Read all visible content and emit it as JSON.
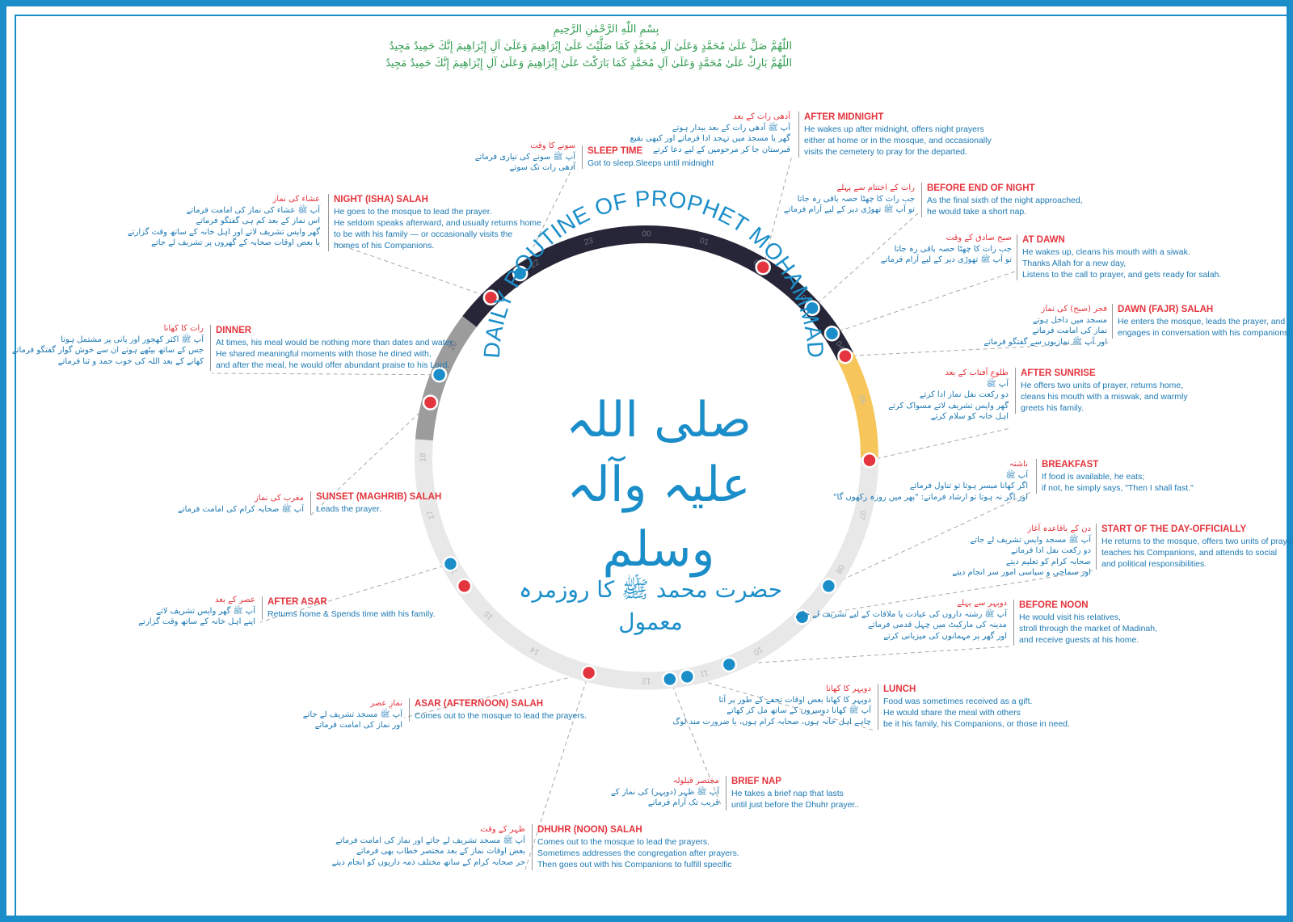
{
  "header": {
    "lines": [
      "بِسْمِ اللّٰهِ الرَّحْمٰنِ الرَّحِيمِ",
      "اللّٰهُمَّ صَلِّ عَلَىٰ مُحَمَّدٍ وَعَلَىٰ آلِ مُحَمَّدٍ كَمَا صَلَّيْتَ عَلَىٰ إِبْرَاهِيمَ وَعَلَىٰ آلِ إِبْرَاهِيمَ إِنَّكَ حَمِيدٌ مَجِيدٌ",
      "اللّٰهُمَّ بَارِكْ عَلَىٰ مُحَمَّدٍ وَعَلَىٰ آلِ مُحَمَّدٍ كَمَا بَارَكْتَ عَلَىٰ إِبْرَاهِيمَ وَعَلَىٰ آلِ إِبْرَاهِيمَ إِنَّكَ حَمِيدٌ مَجِيدٌ"
    ]
  },
  "diagram": {
    "arc_title": "DAILY ROUTINE OF PROPHET MOHAMMAD",
    "center_calligraphy": "صلی اللہ علیہ وآلہ وسلم",
    "subtitle_urdu": "حضرت محمد ﷺ کا روزمرہ معمول",
    "colors": {
      "accent": "#1b8ec9",
      "title_red": "#e4343d",
      "text_blue": "#1c79b3",
      "night": "#272638",
      "dawn": "#f6c65b",
      "evening": "#9c9c9c",
      "day": "#e8e8e8",
      "green": "#2e9a4e"
    },
    "segments": [
      {
        "name": "night",
        "from": 20.5,
        "to": 4.2,
        "color": "#272638"
      },
      {
        "name": "dawn",
        "from": 4.2,
        "to": 6.0,
        "color": "#f6c65b"
      },
      {
        "name": "day",
        "from": 6.0,
        "to": 18.3,
        "color": "#e8e8e8"
      },
      {
        "name": "evening",
        "from": 18.3,
        "to": 20.5,
        "color": "#9c9c9c"
      }
    ],
    "hour_labels": [
      "00",
      "01",
      "02",
      "03",
      "04",
      "05",
      "06",
      "07",
      "08",
      "09",
      "10",
      "11",
      "12",
      "13",
      "14",
      "15",
      "16",
      "17",
      "18",
      "19",
      "20",
      "21",
      "22",
      "23"
    ],
    "markers": [
      {
        "hour": 2.1,
        "color": "#e4343d"
      },
      {
        "hour": 3.2,
        "color": "#1b8ec9"
      },
      {
        "hour": 3.75,
        "color": "#1b8ec9"
      },
      {
        "hour": 4.2,
        "color": "#e4343d"
      },
      {
        "hour": 6.05,
        "color": "#e4343d"
      },
      {
        "hour": 8.35,
        "color": "#1b8ec9"
      },
      {
        "hour": 9.05,
        "color": "#1b8ec9"
      },
      {
        "hour": 10.55,
        "color": "#1b8ec9"
      },
      {
        "hour": 11.3,
        "color": "#1b8ec9"
      },
      {
        "hour": 11.6,
        "color": "#1b8ec9"
      },
      {
        "hour": 13.0,
        "color": "#e4343d"
      },
      {
        "hour": 15.65,
        "color": "#e4343d"
      },
      {
        "hour": 16.1,
        "color": "#1b8ec9"
      },
      {
        "hour": 18.95,
        "color": "#e4343d"
      },
      {
        "hour": 19.45,
        "color": "#1b8ec9"
      },
      {
        "hour": 21.05,
        "color": "#e4343d"
      },
      {
        "hour": 21.7,
        "color": "#1b8ec9"
      }
    ],
    "events": [
      {
        "id": "after-midnight",
        "title": "AFTER MIDNIGHT",
        "en": [
          "He wakes up after midnight, offers night prayers",
          "either at home or in the mosque, and occasionally",
          "visits the cemetery to pray for the departed."
        ],
        "ur_title": "آدھی رات کے بعد",
        "ur": [
          "آپ ﷺ آدھی رات کے بعد بیدار ہوتے",
          "گھر یا مسجد میں تہجد ادا فرماتے اور کبھی بقیع",
          "قبرستان جا کر مرحومین کے لیے دعا کرتے"
        ]
      },
      {
        "id": "sleep-time",
        "title": "SLEEP TIME",
        "en": [
          "Got to sleep.Sleeps until midnight"
        ],
        "ur_title": "سونے کا وقت",
        "ur": [
          "آپ ﷺ سونے کی تیاری فرماتے",
          "آدھی رات تک سوتے"
        ]
      },
      {
        "id": "before-end-of-night",
        "title": "BEFORE END OF NIGHT",
        "en": [
          "As the final sixth of the night approached,",
          "he would take a short nap."
        ],
        "ur_title": "رات کے اختتام سے پہلے",
        "ur": [
          "جب رات کا چھٹا حصہ باقی رہ جاتا",
          "تو آپ ﷺ تھوڑی دیر کے لیے آرام فرماتے"
        ]
      },
      {
        "id": "night-isha",
        "title": "NIGHT (ISHA) SALAH",
        "en": [
          "He goes to the mosque to lead the prayer.",
          "He seldom speaks afterward, and usually returns home",
          "to be with his family — or occasionally visits the",
          "homes of his Companions."
        ],
        "ur_title": "عشاء کی نماز",
        "ur": [
          "آپ ﷺ عشاء کی نماز کی امامت فرماتے",
          "اس نماز کے بعد کم ہی گفتگو فرماتے",
          "گھر واپس تشریف لاتے اور اہل خانہ کے ساتھ وقت گزارتے",
          "یا بعض اوقات صحابہ کے گھروں پر تشریف لے جاتے"
        ]
      },
      {
        "id": "at-dawn",
        "title": "AT DAWN",
        "en": [
          "He wakes up, cleans his mouth with a siwak.",
          "Thanks Allah for a new day,",
          "Listens to the call to prayer, and gets ready for salah."
        ],
        "ur_title": "صبح صادق کے وقت",
        "ur": [
          "جب رات کا چھٹا حصہ باقی رہ جاتا",
          "تو آپ ﷺ تھوڑی دیر کے لیے آرام فرماتے"
        ]
      },
      {
        "id": "dawn-fajr",
        "title": "DAWN (FAJR) SALAH",
        "en": [
          "He enters the mosque, leads the prayer, and",
          "engages in conversation with his companions."
        ],
        "ur_title": "فجر (صبح) کی نماز",
        "ur": [
          "مسجد میں داخل ہوتے",
          "نماز کی امامت فرماتے",
          "اور آپ ﷺ نمازیوں سے گفتگو فرماتے"
        ]
      },
      {
        "id": "dinner",
        "title": "DINNER",
        "en": [
          "At times, his meal would be nothing more than dates and water.",
          "He shared meaningful moments with those he dined with,",
          "and after the meal, he would offer abundant praise to his Lord."
        ],
        "ur_title": "رات کا کھانا",
        "ur": [
          "آپ ﷺ اکثر کھجور اور پانی پر مشتمل ہوتا",
          "جس کے ساتھ بیٹھے ہوتے ان سے خوش گوار گفتگو فرماتے",
          "کھانے کے بعد اللہ کی خوب حمد و ثنا فرماتے"
        ]
      },
      {
        "id": "after-sunrise",
        "title": "AFTER SUNRISE",
        "en": [
          "He offers two units of prayer, returns home,",
          "cleans his mouth with a miswak, and warmly",
          "greets his family."
        ],
        "ur_title": "طلوعِ آفتاب کے بعد",
        "ur": [
          "آپ ﷺ",
          "دو رکعت نفل نماز ادا کرتے",
          "گھر واپس تشریف لاتے مسواک کرتے",
          "اہل خانہ کو سلام کرتے"
        ]
      },
      {
        "id": "breakfast",
        "title": "BREAKFAST",
        "en": [
          "If food is available, he eats;",
          "if not, he simply says, \"Then I shall fast.\""
        ],
        "ur_title": "ناشتہ",
        "ur": [
          "آپ ﷺ",
          "اگر کھانا میسر ہوتا تو تناول فرماتے",
          "اور اگر نہ ہوتا تو ارشاد فرماتے: \"پھر میں روزہ رکھوں گا\""
        ]
      },
      {
        "id": "sunset-maghrib",
        "title": "SUNSET (MAGHRIB) SALAH",
        "en": [
          "Leads the prayer."
        ],
        "ur_title": "مغرب کی نماز",
        "ur": [
          "آپ ﷺ صحابہ کرام کی امامت فرماتے"
        ]
      },
      {
        "id": "start-of-day",
        "title": "START OF THE DAY-OFFICIALLY",
        "en": [
          "He returns to the mosque, offers two units of prayer,",
          "teaches his Companions, and attends to social",
          "and political responsibilities."
        ],
        "ur_title": "دن کے باقاعدہ آغاز",
        "ur": [
          "آپ ﷺ مسجد واپس تشریف لے جاتے",
          "دو رکعت نفل ادا فرماتے",
          "صحابہ کرام کو تعلیم دیتے",
          "اور سماجی و سیاسی امور سر انجام دیتے"
        ]
      },
      {
        "id": "after-asar",
        "title": "AFTER ASAR",
        "en": [
          "Returns home & Spends time with his family."
        ],
        "ur_title": "عصر کے بعد",
        "ur": [
          "آپ ﷺ گھر واپس تشریف لاتے",
          "اپنے اہل خانہ کے ساتھ وقت گزارتے"
        ]
      },
      {
        "id": "before-noon",
        "title": "BEFORE NOON",
        "en": [
          "He would visit his relatives,",
          "stroll through the market of Madinah,",
          "and receive guests at his home."
        ],
        "ur_title": "دوپہر سے پہلے",
        "ur": [
          "آپ ﷺ رشتہ داروں کی عیادت یا ملاقات کے لیے تشریف لے جاتے",
          "مدینہ کی مارکیٹ میں چہل قدمی فرماتے",
          "اور گھر پر مہمانوں کی میزبانی کرتے"
        ]
      },
      {
        "id": "lunch",
        "title": "LUNCH",
        "en": [
          "Food was sometimes received as a gift.",
          "He would share the meal with others",
          "be it his family, his Companions, or those in need."
        ],
        "ur_title": "دوپہر کا کھانا",
        "ur": [
          "دوپہر کا کھانا بعض اوقات تحفے کے طور پر آتا",
          "آپ ﷺ کھانا دوسروں کے ساتھ مل کر کھاتے",
          "چاہے اہل خانہ ہوں، صحابہ کرام ہوں، یا ضرورت مند لوگ"
        ]
      },
      {
        "id": "asar-afternoon",
        "title": "ASAR (AFTERNOON) SALAH",
        "en": [
          "Comes out to the mosque to lead the prayers."
        ],
        "ur_title": "نمازِ عصر",
        "ur": [
          "آپ ﷺ مسجد تشریف لے جاتے",
          "اور نماز کی امامت فرماتے"
        ]
      },
      {
        "id": "brief-nap",
        "title": "BRIEF NAP",
        "en": [
          "He takes a brief nap that lasts",
          "until just before the Dhuhr prayer.."
        ],
        "ur_title": "مختصر قیلولہ",
        "ur": [
          "آپ ﷺ ظہر (دوپہر) کی نماز کے",
          "قریب تک آرام فرماتے"
        ]
      },
      {
        "id": "dhuhr-noon",
        "title": "DHUHR (NOON) SALAH",
        "en": [
          "Comes out to the mosque to lead the prayers.",
          "Sometimes addresses the congregation after prayers.",
          "Then goes out with his Companions to fulfill specific"
        ],
        "ur_title": "ظہر کے وقت",
        "ur": [
          "آپ ﷺ مسجد تشریف لے جاتے اور نماز کی امامت فرماتے",
          "بعض اوقات نماز کے بعد مختصر خطاب بھی فرماتے",
          "حر صحابہ کرام کے ساتھ مختلف ذمہ داریوں کو انجام دیتے"
        ]
      }
    ]
  }
}
